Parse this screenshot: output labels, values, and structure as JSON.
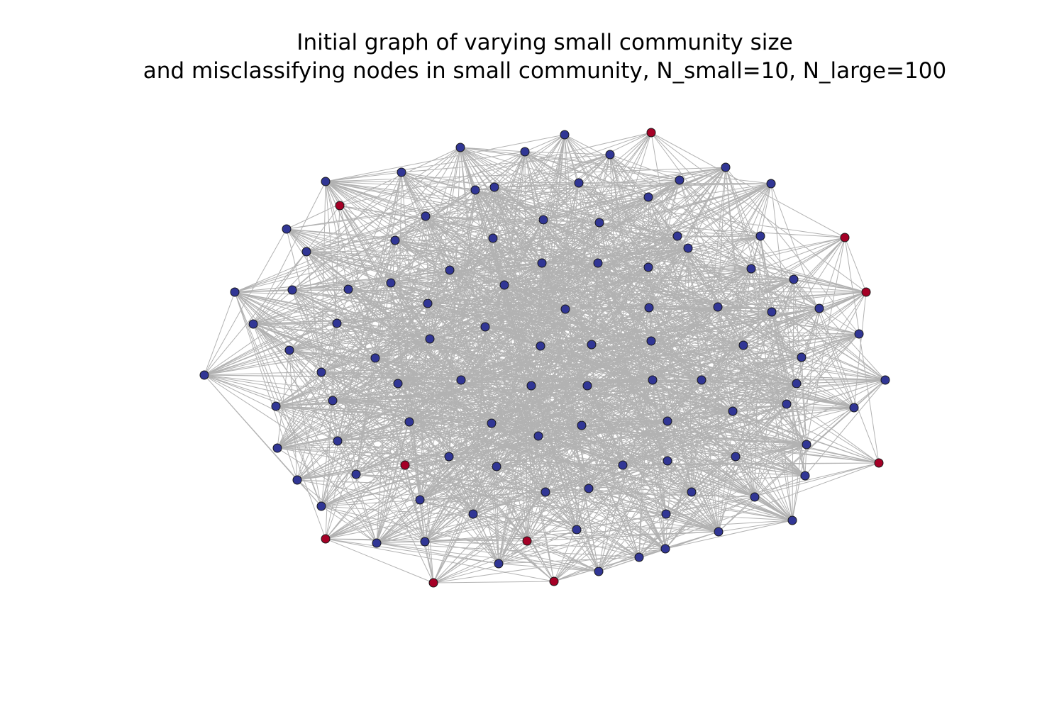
{
  "title": {
    "line1": "Initial graph of varying small community size",
    "line2": "and misclassifying nodes in small community, N_small=10, N_large=100"
  },
  "graph": {
    "small_community_size": 10,
    "large_community_size": 100,
    "node_colors": {
      "small": "#a50026",
      "large": "#313695"
    },
    "edge_color": "#000000"
  }
}
